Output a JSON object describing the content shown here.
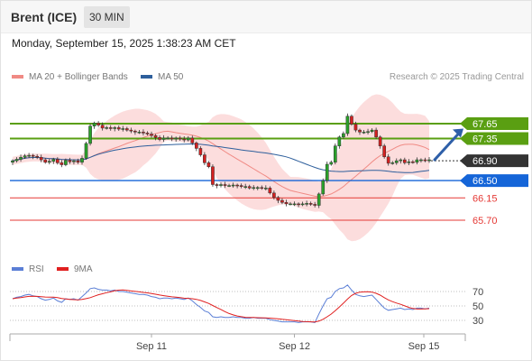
{
  "header": {
    "instrument": "Brent (ICE)",
    "timeframe": "30 MIN"
  },
  "datetime": "Monday, September 15, 2025 1:38:23 AM CET",
  "legend": {
    "ma20": {
      "label": "MA 20 + Bollinger Bands",
      "color": "#f08a84"
    },
    "ma50": {
      "label": "MA 50",
      "color": "#2e5f9c"
    }
  },
  "copyright": "Research © 2025 Trading Central",
  "rsi_legend": {
    "rsi": {
      "label": "RSI",
      "color": "#5b7fd6"
    },
    "ma9": {
      "label": "9MA",
      "color": "#e02020"
    }
  },
  "levels": [
    {
      "label": "67.65",
      "kind": "resistance",
      "color": "#5a9f12"
    },
    {
      "label": "67.35",
      "kind": "resistance",
      "color": "#5a9f12"
    },
    {
      "label": "66.90",
      "kind": "last",
      "color": "#333333"
    },
    {
      "label": "66.50",
      "kind": "pivot",
      "color": "#1565d8"
    },
    {
      "label": "66.15",
      "kind": "support",
      "color": "#e53935"
    },
    {
      "label": "65.70",
      "kind": "support",
      "color": "#e53935"
    }
  ],
  "rsi_levels": [
    "70",
    "50",
    "30"
  ],
  "xaxis": [
    "Sep 11",
    "Sep 12",
    "Sep 15"
  ],
  "colors": {
    "bull": "#2aa12a",
    "bear": "#d42020",
    "band": "#fbd2d2"
  },
  "chart_data": {
    "type": "candlestick",
    "indicators": [
      "MA 20 + Bollinger Bands",
      "MA 50",
      "RSI",
      "9MA"
    ],
    "close": [
      66.9,
      66.93,
      66.97,
      67.0,
      67.01,
      66.99,
      66.97,
      66.92,
      66.87,
      66.89,
      66.93,
      66.86,
      66.82,
      66.91,
      66.88,
      66.9,
      66.87,
      66.95,
      67.25,
      67.6,
      67.66,
      67.62,
      67.56,
      67.57,
      67.55,
      67.57,
      67.54,
      67.55,
      67.52,
      67.5,
      67.48,
      67.48,
      67.46,
      67.44,
      67.41,
      67.37,
      67.33,
      67.36,
      67.36,
      67.34,
      67.36,
      67.34,
      67.32,
      67.36,
      67.26,
      67.15,
      67.02,
      66.86,
      66.78,
      66.42,
      66.4,
      66.42,
      66.4,
      66.4,
      66.41,
      66.4,
      66.38,
      66.38,
      66.35,
      66.36,
      66.36,
      66.35,
      66.35,
      66.25,
      66.16,
      66.1,
      66.06,
      66.03,
      66.03,
      66.03,
      66.02,
      66.03,
      66.04,
      66.02,
      66.0,
      66.23,
      66.5,
      66.83,
      66.87,
      67.2,
      67.38,
      67.45,
      67.8,
      67.64,
      67.52,
      67.48,
      67.48,
      67.49,
      67.52,
      67.38,
      67.2,
      66.98,
      66.85,
      66.86,
      66.9,
      66.92,
      66.86,
      66.88,
      66.87,
      66.92,
      66.92,
      66.9,
      66.92
    ],
    "rsi": [
      60,
      62,
      63,
      65,
      66,
      64,
      63,
      60,
      58,
      59,
      61,
      57,
      55,
      60,
      59,
      60,
      58,
      63,
      68,
      74,
      75,
      73,
      72,
      72,
      71,
      72,
      70,
      70,
      69,
      68,
      67,
      66,
      66,
      65,
      63,
      62,
      60,
      61,
      61,
      60,
      61,
      60,
      59,
      61,
      57,
      52,
      48,
      43,
      41,
      35,
      34,
      35,
      34,
      34,
      35,
      34,
      34,
      33,
      33,
      34,
      33,
      33,
      33,
      31,
      30,
      29,
      28,
      28,
      28,
      28,
      27,
      28,
      28,
      28,
      27,
      39,
      50,
      60,
      62,
      70,
      74,
      75,
      79,
      72,
      66,
      64,
      63,
      64,
      65,
      59,
      53,
      47,
      44,
      45,
      46,
      47,
      45,
      46,
      45,
      47,
      47,
      46,
      47
    ]
  }
}
